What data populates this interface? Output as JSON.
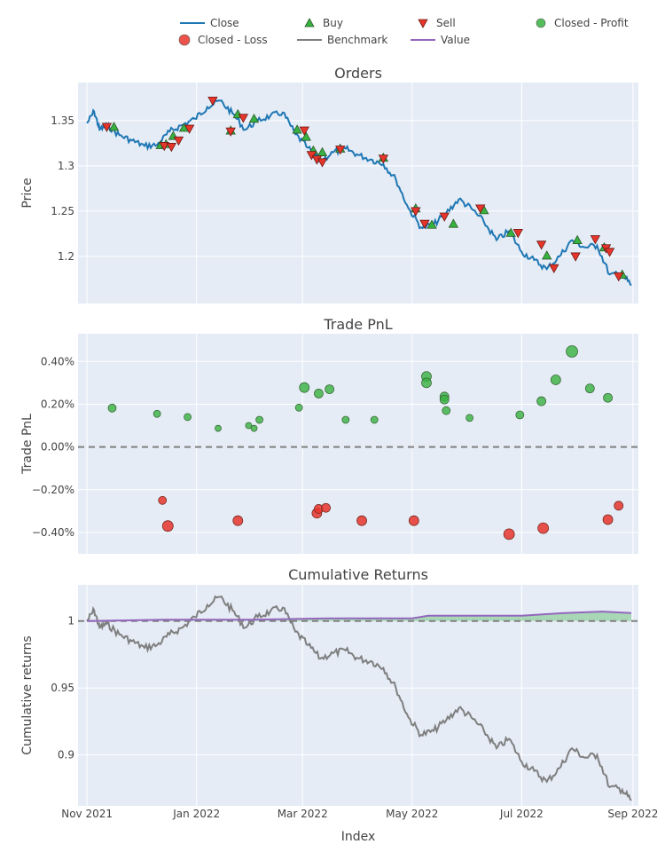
{
  "colors": {
    "close": "#1f77b4",
    "buy_fill": "#37b13f",
    "sell_fill": "#e8352b",
    "profit": "#37b13f",
    "loss": "#e8352b",
    "benchmark": "#7f7f7f",
    "value": "#9467bd",
    "plot_bg": "#e5ecf6",
    "grid": "#ffffff"
  },
  "legend": [
    {
      "name": "Close",
      "kind": "line",
      "color": "#1f77b4"
    },
    {
      "name": "Buy",
      "kind": "triangle-up",
      "color": "#37b13f"
    },
    {
      "name": "Sell",
      "kind": "triangle-down",
      "color": "#e8352b"
    },
    {
      "name": "Closed - Profit",
      "kind": "circle",
      "color": "#37b13f"
    },
    {
      "name": "Closed - Loss",
      "kind": "circle",
      "color": "#e8352b"
    },
    {
      "name": "Benchmark",
      "kind": "line",
      "color": "#7f7f7f"
    },
    {
      "name": "Value",
      "kind": "line",
      "color": "#9467bd"
    }
  ],
  "x_axis": {
    "label": "Index",
    "ticks": [
      "Nov 2021",
      "Jan 2022",
      "Mar 2022",
      "May 2022",
      "Jul 2022",
      "Sep 2022"
    ],
    "tick_dates": [
      "2021-11-01",
      "2022-01-01",
      "2022-03-01",
      "2022-05-01",
      "2022-07-01",
      "2022-09-01"
    ],
    "range": [
      "2021-10-27",
      "2022-09-04"
    ]
  },
  "chart_data": [
    {
      "type": "line",
      "title": "Orders",
      "ylabel": "Price",
      "ylim": [
        1.148,
        1.392
      ],
      "yticks": [
        1.2,
        1.25,
        1.3,
        1.35
      ],
      "ytick_labels": [
        "1.2",
        "1.25",
        "1.3",
        "1.35"
      ],
      "series": [
        {
          "name": "Close",
          "x": [
            "2021-11-01",
            "2021-11-05",
            "2021-11-08",
            "2021-11-12",
            "2021-11-19",
            "2021-11-26",
            "2021-12-03",
            "2021-12-10",
            "2021-12-17",
            "2021-12-24",
            "2021-12-31",
            "2022-01-07",
            "2022-01-14",
            "2022-01-21",
            "2022-01-28",
            "2022-02-04",
            "2022-02-11",
            "2022-02-18",
            "2022-02-25",
            "2022-03-04",
            "2022-03-11",
            "2022-03-18",
            "2022-03-25",
            "2022-04-01",
            "2022-04-08",
            "2022-04-15",
            "2022-04-22",
            "2022-04-29",
            "2022-05-06",
            "2022-05-13",
            "2022-05-20",
            "2022-05-27",
            "2022-06-03",
            "2022-06-10",
            "2022-06-17",
            "2022-06-24",
            "2022-07-01",
            "2022-07-08",
            "2022-07-15",
            "2022-07-22",
            "2022-07-29",
            "2022-08-05",
            "2022-08-12",
            "2022-08-19",
            "2022-08-26",
            "2022-08-31"
          ],
          "y": [
            1.347,
            1.36,
            1.34,
            1.345,
            1.334,
            1.328,
            1.322,
            1.323,
            1.338,
            1.345,
            1.352,
            1.365,
            1.372,
            1.358,
            1.34,
            1.35,
            1.355,
            1.359,
            1.335,
            1.32,
            1.305,
            1.315,
            1.319,
            1.312,
            1.307,
            1.302,
            1.285,
            1.253,
            1.232,
            1.235,
            1.248,
            1.263,
            1.253,
            1.238,
            1.218,
            1.228,
            1.205,
            1.196,
            1.186,
            1.2,
            1.218,
            1.21,
            1.212,
            1.18,
            1.18,
            1.168
          ]
        }
      ],
      "buy": {
        "x": [
          "2021-11-16",
          "2021-12-12",
          "2021-12-15",
          "2021-12-19",
          "2021-12-25",
          "2022-01-20",
          "2022-01-24",
          "2022-02-02",
          "2022-02-26",
          "2022-03-03",
          "2022-03-07",
          "2022-03-12",
          "2022-03-22",
          "2022-04-15",
          "2022-05-03",
          "2022-05-12",
          "2022-05-24",
          "2022-06-10",
          "2022-06-25",
          "2022-07-15",
          "2022-08-01",
          "2022-08-16",
          "2022-08-26"
        ],
        "y": [
          1.343,
          1.323,
          1.324,
          1.333,
          1.342,
          1.339,
          1.357,
          1.352,
          1.34,
          1.332,
          1.317,
          1.315,
          1.319,
          1.309,
          1.253,
          1.235,
          1.236,
          1.251,
          1.226,
          1.201,
          1.218,
          1.21,
          1.18
        ]
      },
      "sell": {
        "x": [
          "2021-11-12",
          "2021-12-14",
          "2021-12-18",
          "2021-12-22",
          "2021-12-28",
          "2022-01-10",
          "2022-01-20",
          "2022-01-27",
          "2022-03-02",
          "2022-03-06",
          "2022-03-09",
          "2022-03-12",
          "2022-03-22",
          "2022-04-15",
          "2022-05-03",
          "2022-05-08",
          "2022-05-19",
          "2022-06-08",
          "2022-06-29",
          "2022-07-12",
          "2022-07-19",
          "2022-07-31",
          "2022-08-11",
          "2022-08-17",
          "2022-08-19",
          "2022-08-24"
        ],
        "y": [
          1.343,
          1.322,
          1.321,
          1.328,
          1.341,
          1.372,
          1.338,
          1.353,
          1.339,
          1.312,
          1.307,
          1.304,
          1.318,
          1.308,
          1.25,
          1.236,
          1.244,
          1.253,
          1.226,
          1.213,
          1.187,
          1.2,
          1.219,
          1.209,
          1.205,
          1.178
        ]
      }
    },
    {
      "type": "scatter",
      "title": "Trade PnL",
      "ylabel": "Trade PnL",
      "ylim": [
        -0.005,
        0.0053
      ],
      "yticks": [
        -0.004,
        -0.002,
        0,
        0.002,
        0.004
      ],
      "ytick_labels": [
        "−0.40%",
        "−0.20%",
        "0.00%",
        "0.20%",
        "0.40%"
      ],
      "profit": {
        "name": "Closed - Profit",
        "x": [
          "2021-11-15",
          "2021-12-10",
          "2021-12-27",
          "2022-01-13",
          "2022-01-30",
          "2022-02-02",
          "2022-02-05",
          "2022-02-27",
          "2022-03-02",
          "2022-03-10",
          "2022-03-16",
          "2022-03-25",
          "2022-04-10",
          "2022-05-09",
          "2022-05-09",
          "2022-05-19",
          "2022-05-19",
          "2022-05-20",
          "2022-06-02",
          "2022-06-30",
          "2022-07-12",
          "2022-07-20",
          "2022-07-29",
          "2022-08-08",
          "2022-08-18"
        ],
        "y": [
          0.00182,
          0.00155,
          0.0014,
          0.00087,
          0.001,
          0.00087,
          0.00127,
          0.00184,
          0.00278,
          0.0025,
          0.0027,
          0.00127,
          0.00127,
          0.0033,
          0.003,
          0.00236,
          0.00222,
          0.0017,
          0.00136,
          0.0015,
          0.00214,
          0.00314,
          0.00447,
          0.00274,
          0.0023
        ],
        "size": [
          9,
          8,
          8,
          7,
          7,
          7,
          8,
          8,
          11,
          10,
          10,
          8,
          8,
          11,
          11,
          10,
          10,
          9,
          8,
          9,
          10,
          11,
          13,
          10,
          10
        ]
      },
      "loss": {
        "name": "Closed - Loss",
        "x": [
          "2021-12-13",
          "2021-12-16",
          "2022-01-24",
          "2022-03-09",
          "2022-03-10",
          "2022-03-14",
          "2022-04-03",
          "2022-05-02",
          "2022-06-24",
          "2022-07-13",
          "2022-08-18",
          "2022-08-24"
        ],
        "y": [
          -0.0025,
          -0.0037,
          -0.00345,
          -0.0031,
          -0.0029,
          -0.00285,
          -0.00345,
          -0.00345,
          -0.00408,
          -0.0038,
          -0.0034,
          -0.00275
        ],
        "size": [
          9,
          12,
          11,
          11,
          10,
          10,
          11,
          11,
          12,
          12,
          11,
          10
        ]
      }
    },
    {
      "type": "line",
      "title": "Cumulative Returns",
      "ylabel": "Cumulative returns",
      "ylim": [
        0.862,
        1.027
      ],
      "yticks": [
        0.9,
        0.95,
        1
      ],
      "ytick_labels": [
        "0.9",
        "0.95",
        "1"
      ],
      "series": [
        {
          "name": "Benchmark",
          "x": [
            "2021-11-01",
            "2021-11-05",
            "2021-11-08",
            "2021-11-12",
            "2021-11-19",
            "2021-11-26",
            "2021-12-03",
            "2021-12-10",
            "2021-12-17",
            "2021-12-24",
            "2021-12-31",
            "2022-01-07",
            "2022-01-14",
            "2022-01-21",
            "2022-01-28",
            "2022-02-04",
            "2022-02-11",
            "2022-02-18",
            "2022-02-25",
            "2022-03-04",
            "2022-03-11",
            "2022-03-18",
            "2022-03-25",
            "2022-04-01",
            "2022-04-08",
            "2022-04-15",
            "2022-04-22",
            "2022-04-29",
            "2022-05-06",
            "2022-05-13",
            "2022-05-20",
            "2022-05-27",
            "2022-06-03",
            "2022-06-10",
            "2022-06-17",
            "2022-06-24",
            "2022-07-01",
            "2022-07-08",
            "2022-07-15",
            "2022-07-22",
            "2022-07-29",
            "2022-08-05",
            "2022-08-12",
            "2022-08-19",
            "2022-08-26",
            "2022-08-31"
          ],
          "y": [
            1.0,
            1.008,
            0.995,
            0.998,
            0.99,
            0.985,
            0.98,
            0.982,
            0.99,
            0.995,
            1.003,
            1.012,
            1.018,
            1.008,
            0.995,
            1.003,
            1.007,
            1.01,
            0.992,
            0.982,
            0.972,
            0.976,
            0.978,
            0.972,
            0.97,
            0.965,
            0.95,
            0.928,
            0.915,
            0.918,
            0.926,
            0.935,
            0.928,
            0.918,
            0.905,
            0.912,
            0.895,
            0.888,
            0.88,
            0.89,
            0.905,
            0.898,
            0.9,
            0.876,
            0.874,
            0.866
          ]
        },
        {
          "name": "Value",
          "x": [
            "2021-11-01",
            "2021-12-15",
            "2022-02-01",
            "2022-03-15",
            "2022-05-01",
            "2022-05-10",
            "2022-06-01",
            "2022-07-01",
            "2022-07-25",
            "2022-08-15",
            "2022-08-31"
          ],
          "y": [
            1.0,
            1.001,
            1.001,
            1.002,
            1.002,
            1.004,
            1.004,
            1.004,
            1.006,
            1.007,
            1.006
          ]
        }
      ],
      "baseline": 1
    }
  ]
}
